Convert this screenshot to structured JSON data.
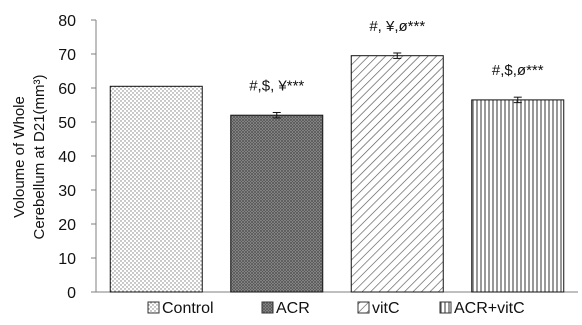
{
  "chart_data": {
    "type": "bar",
    "categories": [
      "Control",
      "ACR",
      "vitC",
      "ACR+vitC"
    ],
    "values": [
      60.5,
      52,
      69.5,
      56.5
    ],
    "errors": [
      0,
      0.8,
      0.8,
      0.8
    ],
    "annotations": [
      "",
      "#,$, ¥***",
      "#, ¥,ø***",
      "#,$,ø***"
    ],
    "ylabel_line1": "Voloume of Whole",
    "ylabel_line2": "Cerebellum at D21(mm³)",
    "ylim": [
      0,
      80
    ],
    "yticks": [
      0,
      10,
      20,
      30,
      40,
      50,
      60,
      70,
      80
    ],
    "grid": false,
    "legend_position": "bottom",
    "patterns": [
      "dots",
      "crosshatch-dense",
      "diagonal",
      "vertical"
    ]
  }
}
